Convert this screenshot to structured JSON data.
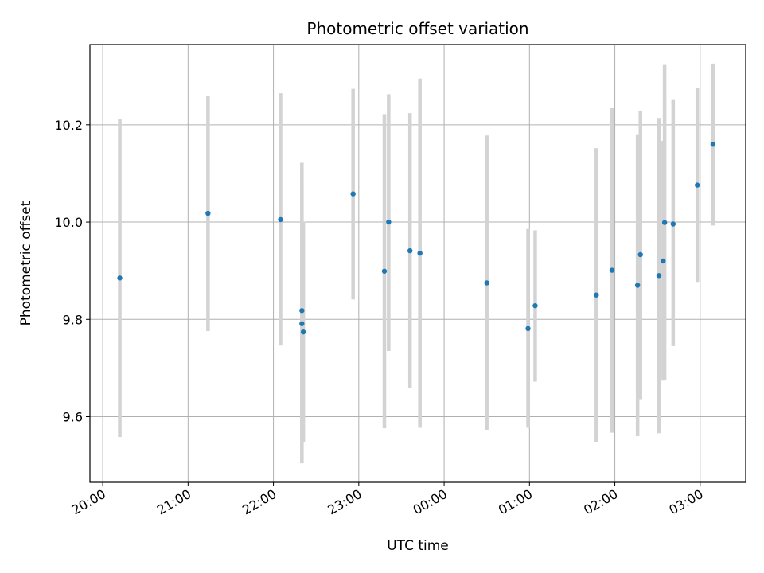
{
  "chart_data": {
    "type": "scatter",
    "title": "Photometric offset variation",
    "xlabel": "UTC time",
    "ylabel": "Photometric offset",
    "x_unit": "UTC time (HH:MM), night crossing midnight",
    "xlim": [
      "19:51",
      "03:32"
    ],
    "ylim": [
      9.465,
      10.365
    ],
    "grid": true,
    "x_ticks": [
      "20:00",
      "21:00",
      "22:00",
      "23:00",
      "00:00",
      "01:00",
      "02:00",
      "03:00"
    ],
    "y_ticks": [
      9.6,
      9.8,
      10.0,
      10.2
    ],
    "y_tick_labels": [
      "9.6",
      "9.8",
      "10.0",
      "10.2"
    ],
    "colors": {
      "marker": "#1f77b4",
      "errorbar": "#d3d3d3",
      "grid": "#b0b0b0"
    },
    "points": [
      {
        "x": "20:12",
        "y": 9.885,
        "ylo": 9.558,
        "yhi": 10.212
      },
      {
        "x": "21:14",
        "y": 10.018,
        "ylo": 9.776,
        "yhi": 10.259
      },
      {
        "x": "22:05",
        "y": 10.005,
        "ylo": 9.746,
        "yhi": 10.265
      },
      {
        "x": "22:20",
        "y": 9.818,
        "ylo": 9.513,
        "yhi": 10.122
      },
      {
        "x": "22:20",
        "y": 9.791,
        "ylo": 9.504,
        "yhi": 10.078
      },
      {
        "x": "22:21",
        "y": 9.774,
        "ylo": 9.548,
        "yhi": 10.001
      },
      {
        "x": "22:56",
        "y": 10.058,
        "ylo": 9.841,
        "yhi": 10.274
      },
      {
        "x": "23:18",
        "y": 9.899,
        "ylo": 9.576,
        "yhi": 10.222
      },
      {
        "x": "23:21",
        "y": 10.0,
        "ylo": 9.735,
        "yhi": 10.263
      },
      {
        "x": "23:36",
        "y": 9.941,
        "ylo": 9.658,
        "yhi": 10.224
      },
      {
        "x": "23:43",
        "y": 9.936,
        "ylo": 9.577,
        "yhi": 10.295
      },
      {
        "x": "00:30",
        "y": 9.875,
        "ylo": 9.573,
        "yhi": 10.178
      },
      {
        "x": "00:59",
        "y": 9.781,
        "ylo": 9.577,
        "yhi": 9.986
      },
      {
        "x": "01:04",
        "y": 9.828,
        "ylo": 9.672,
        "yhi": 9.983
      },
      {
        "x": "01:47",
        "y": 9.85,
        "ylo": 9.548,
        "yhi": 10.152
      },
      {
        "x": "01:58",
        "y": 9.901,
        "ylo": 9.567,
        "yhi": 10.234
      },
      {
        "x": "02:16",
        "y": 9.87,
        "ylo": 9.56,
        "yhi": 10.179
      },
      {
        "x": "02:18",
        "y": 9.933,
        "ylo": 9.636,
        "yhi": 10.229
      },
      {
        "x": "02:31",
        "y": 9.89,
        "ylo": 9.566,
        "yhi": 10.214
      },
      {
        "x": "02:34",
        "y": 9.92,
        "ylo": 9.674,
        "yhi": 10.167
      },
      {
        "x": "02:35",
        "y": 9.999,
        "ylo": 9.675,
        "yhi": 10.323
      },
      {
        "x": "02:41",
        "y": 9.996,
        "ylo": 9.745,
        "yhi": 10.251
      },
      {
        "x": "02:58",
        "y": 10.076,
        "ylo": 9.877,
        "yhi": 10.276
      },
      {
        "x": "03:09",
        "y": 10.16,
        "ylo": 9.993,
        "yhi": 10.326
      }
    ]
  }
}
